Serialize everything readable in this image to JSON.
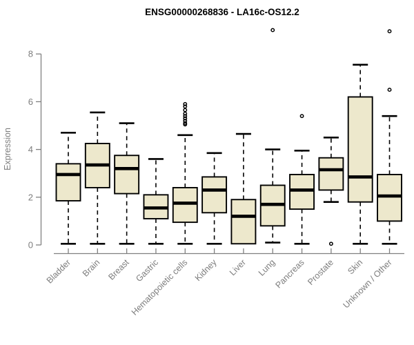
{
  "chart_data": {
    "type": "boxplot",
    "title": "ENSG00000268836 - LA16c-OS12.2",
    "ylabel": "Expression",
    "xlabel": "",
    "ylim": [
      0,
      9.2
    ],
    "yticks": [
      0,
      2,
      4,
      6,
      8
    ],
    "grid": false,
    "legend": "none",
    "colors": {
      "box_fill": "#EDE8CC",
      "box_stroke": "#000000",
      "median_stroke": "#000000",
      "whisker_stroke": "#000000",
      "axis_color": "#7f7f7f",
      "title_color": "#000000",
      "background": "#ffffff"
    },
    "categories": [
      "Bladder",
      "Brain",
      "Breast",
      "Gastric",
      "Hematopoietic cells",
      "Kidney",
      "Liver",
      "Lung",
      "Pancreas",
      "Prostate",
      "Skin",
      "Unknown / Other"
    ],
    "series": [
      {
        "name": "Bladder",
        "low": 0.05,
        "q1": 1.85,
        "median": 2.95,
        "q3": 3.4,
        "high": 4.7,
        "outliers": []
      },
      {
        "name": "Brain",
        "low": 0.05,
        "q1": 2.4,
        "median": 3.35,
        "q3": 4.25,
        "high": 5.55,
        "outliers": []
      },
      {
        "name": "Breast",
        "low": 0.05,
        "q1": 2.15,
        "median": 3.2,
        "q3": 3.75,
        "high": 5.1,
        "outliers": []
      },
      {
        "name": "Gastric",
        "low": 0.05,
        "q1": 1.1,
        "median": 1.55,
        "q3": 2.1,
        "high": 3.6,
        "outliers": []
      },
      {
        "name": "Hematopoietic cells",
        "low": 0.05,
        "q1": 0.95,
        "median": 1.75,
        "q3": 2.4,
        "high": 4.6,
        "outliers": [
          5.05,
          5.1,
          5.2,
          5.3,
          5.4,
          5.5,
          5.65,
          5.8,
          5.9
        ]
      },
      {
        "name": "Kidney",
        "low": 0.05,
        "q1": 1.35,
        "median": 2.3,
        "q3": 2.85,
        "high": 3.85,
        "outliers": []
      },
      {
        "name": "Liver",
        "low": 0.05,
        "q1": 0.05,
        "median": 1.2,
        "q3": 1.9,
        "high": 4.65,
        "outliers": []
      },
      {
        "name": "Lung",
        "low": 0.1,
        "q1": 0.8,
        "median": 1.7,
        "q3": 2.5,
        "high": 4.0,
        "outliers": [
          9.0
        ]
      },
      {
        "name": "Pancreas",
        "low": 0.05,
        "q1": 1.5,
        "median": 2.3,
        "q3": 2.95,
        "high": 3.95,
        "outliers": [
          5.4
        ]
      },
      {
        "name": "Prostate",
        "low": 1.8,
        "q1": 2.3,
        "median": 3.15,
        "q3": 3.65,
        "high": 4.5,
        "outliers": [
          0.05
        ]
      },
      {
        "name": "Skin",
        "low": 0.05,
        "q1": 1.8,
        "median": 2.85,
        "q3": 6.2,
        "high": 7.55,
        "outliers": []
      },
      {
        "name": "Unknown / Other",
        "low": 0.05,
        "q1": 1.0,
        "median": 2.05,
        "q3": 2.95,
        "high": 5.4,
        "outliers": [
          6.5,
          8.95
        ]
      }
    ]
  }
}
